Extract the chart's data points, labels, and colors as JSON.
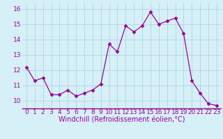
{
  "x": [
    0,
    1,
    2,
    3,
    4,
    5,
    6,
    7,
    8,
    9,
    10,
    11,
    12,
    13,
    14,
    15,
    16,
    17,
    18,
    19,
    20,
    21,
    22,
    23
  ],
  "y": [
    12.2,
    11.3,
    11.5,
    10.4,
    10.4,
    10.7,
    10.3,
    10.5,
    10.7,
    11.1,
    13.7,
    13.2,
    14.9,
    14.5,
    14.9,
    15.8,
    15.0,
    15.2,
    15.4,
    14.4,
    11.3,
    10.5,
    9.8,
    9.7
  ],
  "line_color": "#990099",
  "marker": "D",
  "marker_size": 2.5,
  "bg_color": "#d6f0f8",
  "grid_color": "#aaccdd",
  "xlabel": "Windchill (Refroidissement éolien,°C)",
  "xlabel_color": "#990099",
  "xlabel_fontsize": 7,
  "tick_label_color": "#990099",
  "tick_fontsize": 6.5,
  "ylim": [
    9.5,
    16.4
  ],
  "yticks": [
    10,
    11,
    12,
    13,
    14,
    15,
    16
  ],
  "xticks": [
    0,
    1,
    2,
    3,
    4,
    5,
    6,
    7,
    8,
    9,
    10,
    11,
    12,
    13,
    14,
    15,
    16,
    17,
    18,
    19,
    20,
    21,
    22,
    23
  ],
  "xlim": [
    -0.5,
    23.5
  ]
}
